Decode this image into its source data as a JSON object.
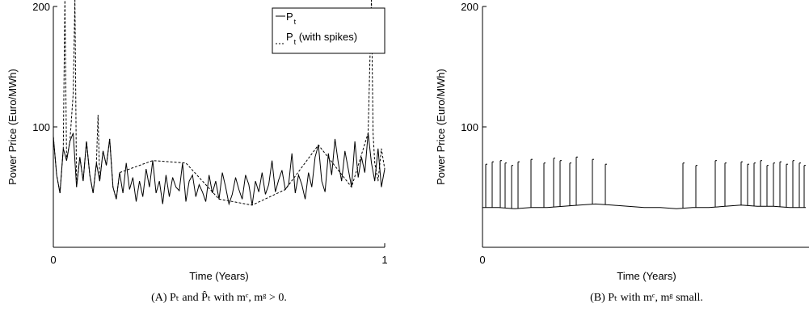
{
  "chart_data": [
    {
      "type": "line",
      "panel": "A",
      "caption": "(A) Pₜ and P̂ₜ with mᶜ, mᵍ > 0.",
      "caption_parts": {
        "label": "(A)",
        "text": "Pₜ and P̂ₜ with mᶜ, mᵍ > 0."
      },
      "xlabel": "Time (Years)",
      "ylabel": "Power Price (Euro/MWh)",
      "xlim": [
        0,
        1
      ],
      "ylim": [
        0,
        200
      ],
      "xticks": [
        "0",
        "1"
      ],
      "yticks": [
        "100",
        "200"
      ],
      "grid": false,
      "legend_position": "top-right",
      "legend": [
        {
          "prefix": "—",
          "text": "P",
          "sub": "t",
          "suffix": ""
        },
        {
          "prefix": "- - ",
          "text": "P",
          "sub": "t",
          "suffix": " (with spikes)"
        }
      ],
      "series": [
        {
          "name": "P t",
          "style": "solid",
          "color": "#000000",
          "x": [
            0,
            0.01,
            0.02,
            0.03,
            0.04,
            0.05,
            0.06,
            0.07,
            0.08,
            0.09,
            0.1,
            0.11,
            0.12,
            0.13,
            0.14,
            0.15,
            0.16,
            0.17,
            0.18,
            0.19,
            0.2,
            0.21,
            0.22,
            0.23,
            0.24,
            0.25,
            0.26,
            0.27,
            0.28,
            0.29,
            0.3,
            0.31,
            0.32,
            0.33,
            0.34,
            0.35,
            0.36,
            0.37,
            0.38,
            0.39,
            0.4,
            0.41,
            0.42,
            0.43,
            0.44,
            0.45,
            0.46,
            0.47,
            0.48,
            0.49,
            0.5,
            0.51,
            0.52,
            0.53,
            0.54,
            0.55,
            0.56,
            0.57,
            0.58,
            0.59,
            0.6,
            0.61,
            0.62,
            0.63,
            0.64,
            0.65,
            0.66,
            0.67,
            0.68,
            0.69,
            0.7,
            0.71,
            0.72,
            0.73,
            0.74,
            0.75,
            0.76,
            0.77,
            0.78,
            0.79,
            0.8,
            0.81,
            0.82,
            0.83,
            0.84,
            0.85,
            0.86,
            0.87,
            0.88,
            0.89,
            0.9,
            0.91,
            0.92,
            0.93,
            0.94,
            0.95,
            0.96,
            0.97,
            0.98,
            0.99,
            1.0
          ],
          "y": [
            92,
            60,
            45,
            82,
            72,
            88,
            95,
            50,
            75,
            55,
            88,
            60,
            45,
            70,
            55,
            80,
            68,
            90,
            50,
            40,
            62,
            45,
            70,
            48,
            58,
            38,
            55,
            42,
            65,
            50,
            72,
            45,
            55,
            36,
            60,
            42,
            58,
            50,
            47,
            70,
            38,
            55,
            60,
            42,
            52,
            46,
            38,
            60,
            45,
            55,
            40,
            62,
            50,
            36,
            44,
            58,
            48,
            40,
            60,
            52,
            35,
            55,
            46,
            62,
            44,
            52,
            72,
            46,
            56,
            64,
            48,
            52,
            78,
            45,
            60,
            52,
            40,
            62,
            50,
            75,
            85,
            55,
            46,
            78,
            60,
            90,
            70,
            55,
            80,
            65,
            50,
            88,
            58,
            75,
            62,
            95,
            70,
            55,
            82,
            50,
            65
          ]
        },
        {
          "name": "P t (with spikes)",
          "style": "dashed",
          "color": "#000000",
          "x": [
            0,
            0.01,
            0.02,
            0.03,
            0.035,
            0.04,
            0.05,
            0.06,
            0.065,
            0.07,
            0.08,
            0.09,
            0.1,
            0.11,
            0.12,
            0.13,
            0.135,
            0.14,
            0.15,
            0.16,
            0.17,
            0.18,
            0.19,
            0.2,
            0.3,
            0.4,
            0.5,
            0.6,
            0.7,
            0.8,
            0.9,
            0.95,
            0.96,
            0.965,
            0.97,
            0.98,
            0.99,
            1.0
          ],
          "y": [
            92,
            60,
            45,
            82,
            210,
            72,
            88,
            128,
            210,
            50,
            75,
            55,
            88,
            60,
            45,
            70,
            110,
            55,
            80,
            68,
            90,
            50,
            40,
            62,
            72,
            70,
            40,
            35,
            48,
            85,
            50,
            95,
            210,
            95,
            70,
            55,
            82,
            65
          ]
        }
      ]
    },
    {
      "type": "line",
      "panel": "B",
      "caption": "(B) Pₜ with mᶜ, mᵍ small.",
      "caption_parts": {
        "label": "(B)",
        "text": "Pₜ with mᶜ, mᵍ small."
      },
      "xlabel": "Time (Years)",
      "ylabel": "Power Price (Euro/MWh)",
      "xlim": [
        0,
        1
      ],
      "ylim": [
        0,
        200
      ],
      "xticks": [
        "0"
      ],
      "yticks": [
        "100",
        "200"
      ],
      "grid": false,
      "series": [
        {
          "style": "solid",
          "color": "#000000",
          "baseline_x": [
            0,
            0.05,
            0.1,
            0.15,
            0.2,
            0.25,
            0.3,
            0.35,
            0.4,
            0.45,
            0.5,
            0.55,
            0.6,
            0.65,
            0.7,
            0.75,
            0.8,
            0.85,
            0.9,
            0.95,
            1.0
          ],
          "baseline_y": [
            33,
            33,
            32,
            33,
            33,
            34,
            35,
            36,
            35,
            34,
            33,
            33,
            32,
            33,
            33,
            34,
            35,
            34,
            34,
            33,
            33
          ],
          "spike_x": [
            0.01,
            0.03,
            0.055,
            0.07,
            0.09,
            0.11,
            0.15,
            0.19,
            0.22,
            0.24,
            0.27,
            0.29,
            0.34,
            0.38,
            0.62,
            0.66,
            0.72,
            0.75,
            0.8,
            0.82,
            0.84,
            0.86,
            0.88,
            0.9,
            0.92,
            0.94,
            0.96,
            0.98,
            0.995
          ],
          "spike_y": [
            69,
            71,
            72,
            70,
            68,
            71,
            73,
            70,
            74,
            72,
            70,
            75,
            73,
            69,
            70,
            68,
            72,
            70,
            71,
            69,
            70,
            72,
            68,
            70,
            71,
            69,
            72,
            70,
            68
          ]
        }
      ]
    }
  ]
}
